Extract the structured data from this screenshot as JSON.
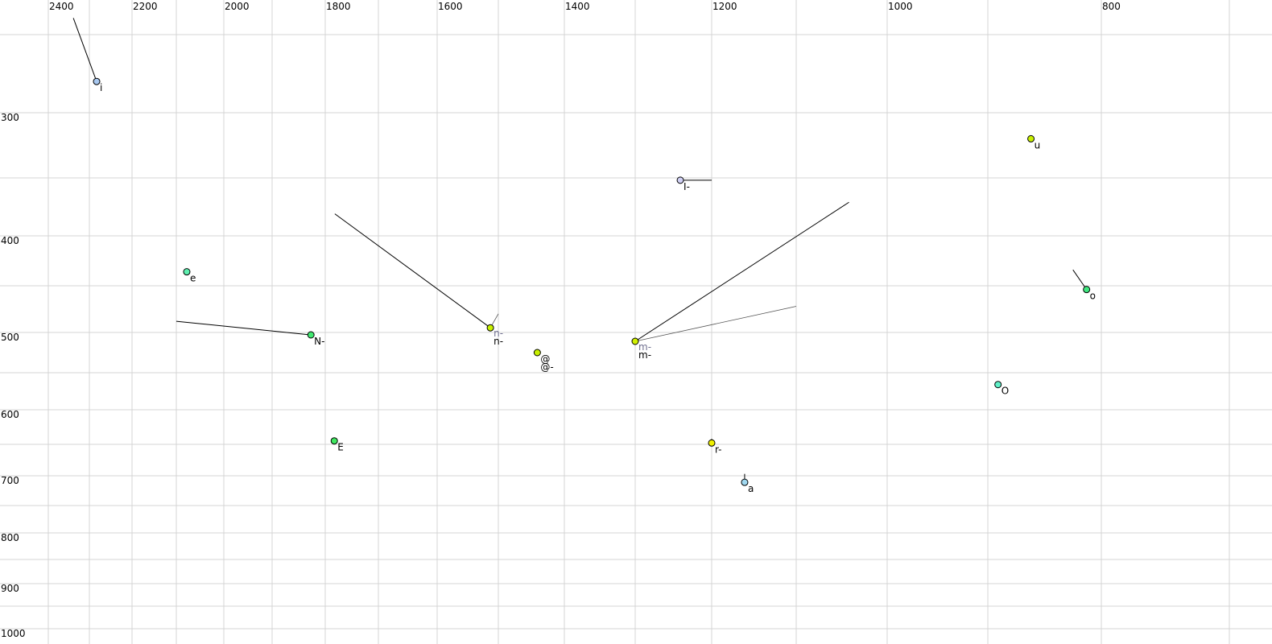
{
  "chart_data": {
    "type": "scatter",
    "title": "",
    "xlabel": "",
    "ylabel": "",
    "x_axis": {
      "reversed": true,
      "position": "top",
      "range": [
        2440,
        690
      ],
      "tick_labels": [
        2400,
        2200,
        2000,
        1800,
        1600,
        1400,
        1200,
        1000,
        800
      ],
      "grid_step": 100
    },
    "y_axis": {
      "reversed": false,
      "position": "left",
      "range": [
        235,
        1020
      ],
      "tick_labels": [
        300,
        400,
        500,
        600,
        700,
        800,
        900,
        1000
      ],
      "grid_step": 50
    },
    "grid": true,
    "legend": "none",
    "points": [
      {
        "label": "i",
        "x": 2283,
        "y": 280,
        "color": "#a8c8f0",
        "trajectory": [
          {
            "x": 2339,
            "y": 240
          }
        ]
      },
      {
        "label": "e",
        "x": 2078,
        "y": 436,
        "color": "#5ff0b0",
        "trajectory": []
      },
      {
        "label": "N-",
        "x": 1827,
        "y": 503,
        "color": "#40e870",
        "trajectory": [
          {
            "x": 2100,
            "y": 488
          }
        ]
      },
      {
        "label": "E",
        "x": 1783,
        "y": 645,
        "color": "#40e860",
        "trajectory": []
      },
      {
        "label": "n-",
        "x": 1513,
        "y": 495,
        "color": "#c8f000",
        "trajectory": [
          {
            "x": 1782,
            "y": 381
          }
        ],
        "alt_label": "n-",
        "alt_trajectory": [
          {
            "x": 1500,
            "y": 480
          }
        ]
      },
      {
        "label": "@",
        "x": 1441,
        "y": 525,
        "color": "#c8f000",
        "trajectory": [],
        "second_label": "@-"
      },
      {
        "label": "m-",
        "x": 1300,
        "y": 511,
        "color": "#d0f000",
        "trajectory": [
          {
            "x": 1042,
            "y": 371
          }
        ],
        "alt_label": "m-",
        "alt_trajectory": [
          {
            "x": 1100,
            "y": 472
          }
        ]
      },
      {
        "label": "I-",
        "x": 1241,
        "y": 352,
        "color": "#d0d0f4",
        "trajectory": [
          {
            "x": 1200,
            "y": 352
          }
        ]
      },
      {
        "label": "u",
        "x": 862,
        "y": 320,
        "color": "#c8f000",
        "trajectory": []
      },
      {
        "label": "o",
        "x": 813,
        "y": 454,
        "color": "#40e880",
        "trajectory": [
          {
            "x": 825,
            "y": 434
          }
        ]
      },
      {
        "label": "O",
        "x": 891,
        "y": 566,
        "color": "#60f0c8",
        "trajectory": []
      },
      {
        "label": "r-",
        "x": 1200,
        "y": 648,
        "color": "#f0f000",
        "trajectory": [
          {
            "x": 1200,
            "y": 642
          }
        ]
      },
      {
        "label": "a",
        "x": 1161,
        "y": 711,
        "color": "#a0d8f0",
        "trajectory": [
          {
            "x": 1161,
            "y": 697
          }
        ]
      }
    ]
  }
}
